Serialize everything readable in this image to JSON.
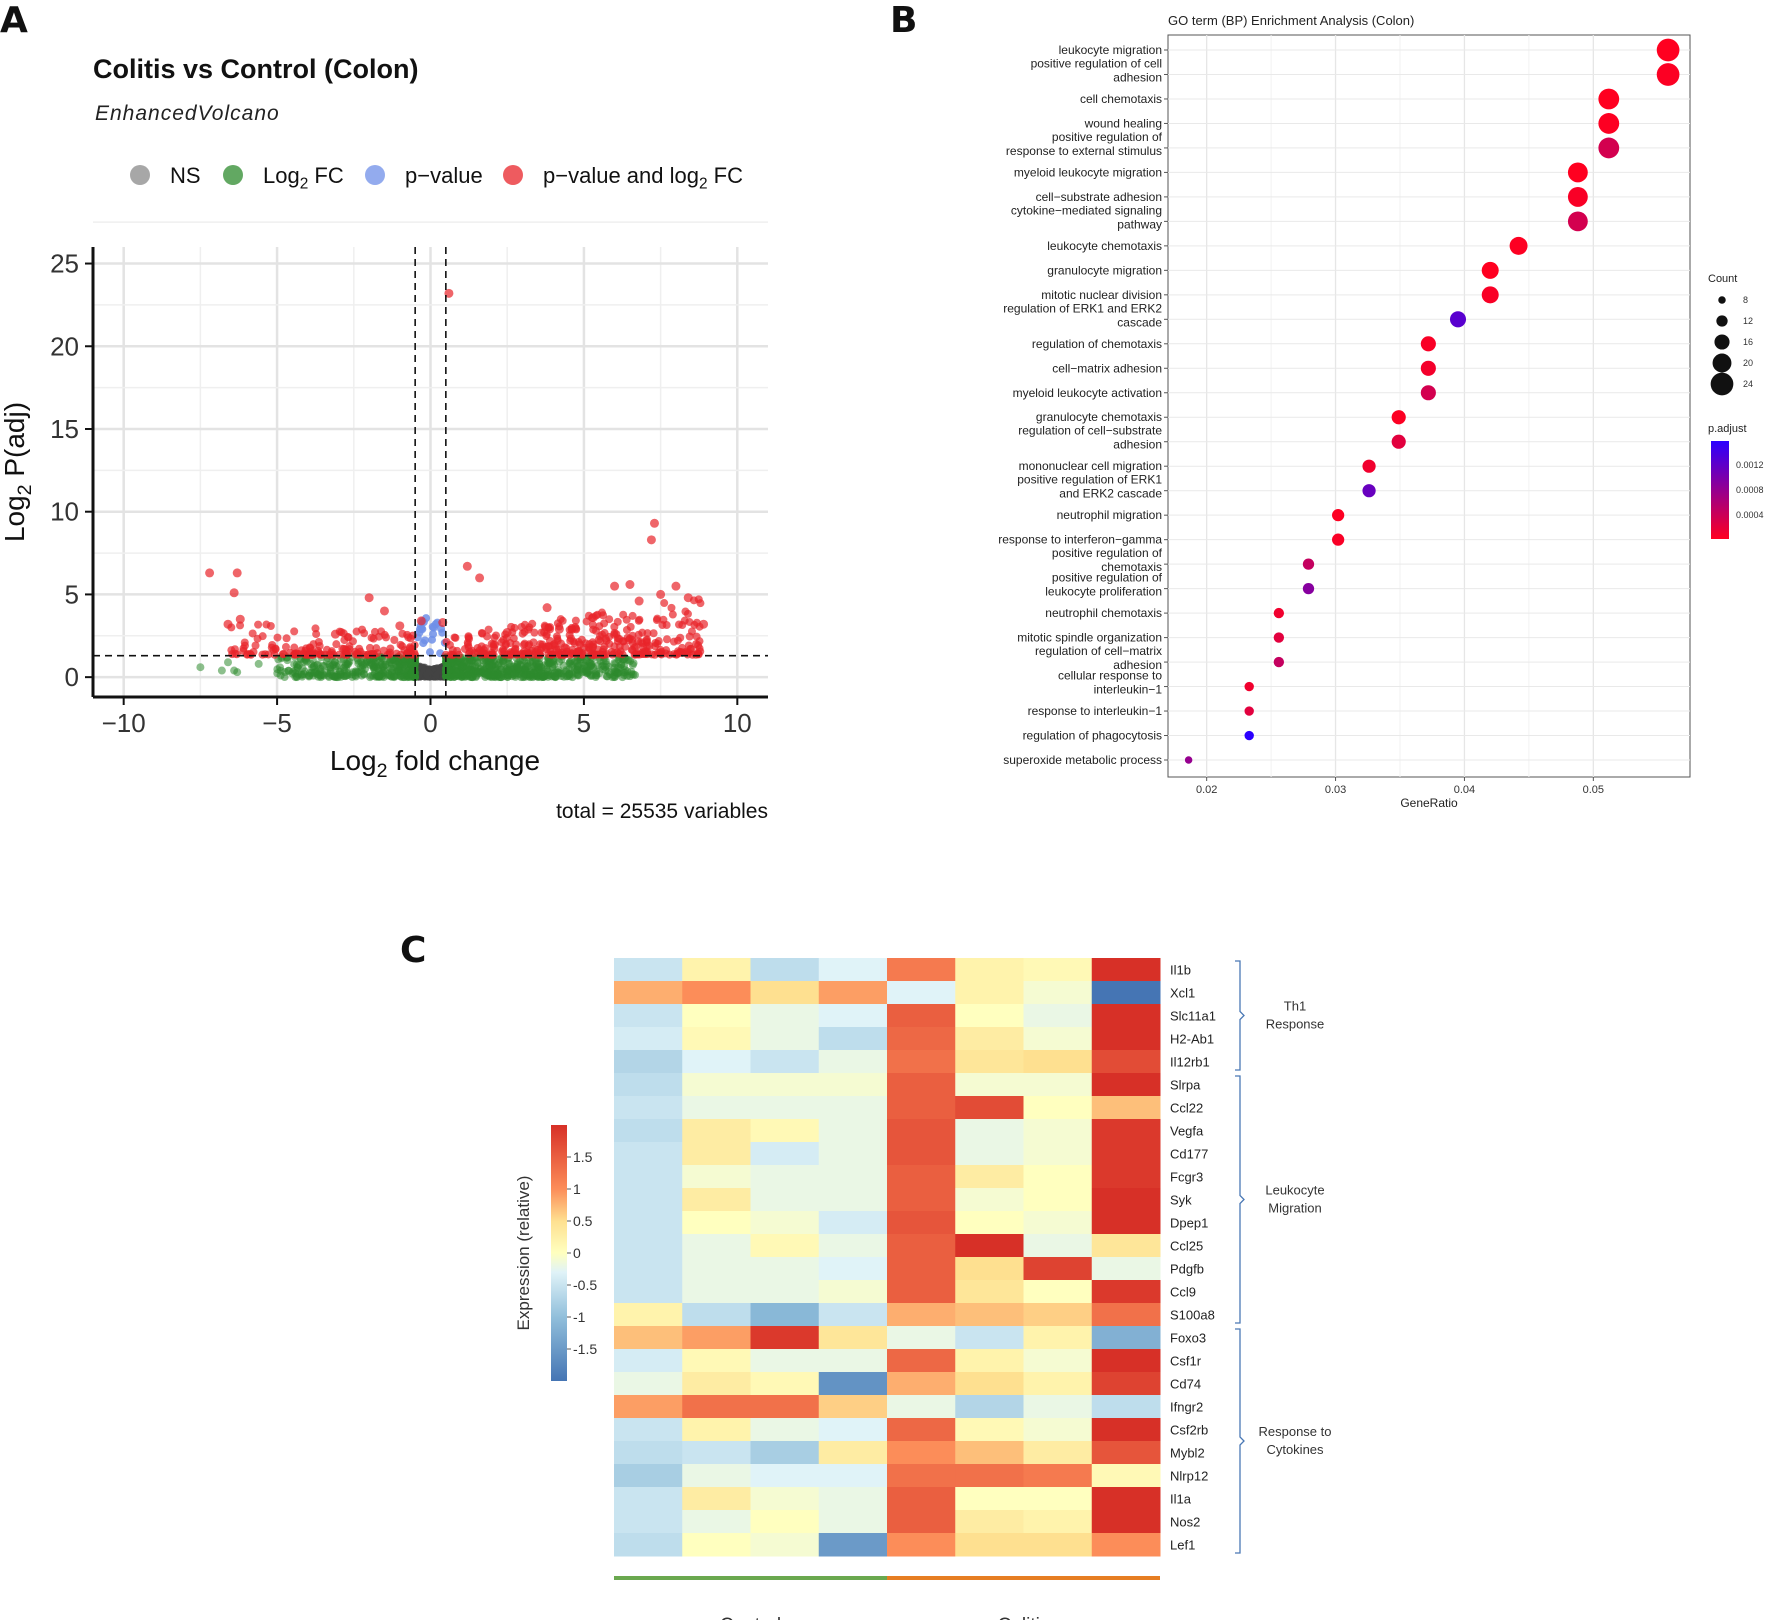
{
  "panel_labels": {
    "a": "A",
    "b": "B",
    "c": "C"
  },
  "chart_data": [
    {
      "type": "scatter",
      "title": "Colitis vs Control (Colon)",
      "subtitle": "EnhancedVolcano",
      "xlabel": "Log2 fold change",
      "ylabel": "Log2 P(adj)",
      "caption": "total = 25535 variables",
      "xlim": [
        -11,
        11
      ],
      "ylim": [
        -1.2,
        26
      ],
      "xticks": [
        -10,
        -5,
        0,
        5,
        10
      ],
      "xtick_labels": [
        "−10",
        "−5",
        "0",
        "5",
        "10"
      ],
      "yticks": [
        0,
        5,
        10,
        15,
        20,
        25
      ],
      "grid": true,
      "fc_cutoff": [
        -0.5,
        0.5
      ],
      "p_cutoff": 1.3,
      "legend_position": "top",
      "legend": [
        {
          "label": "NS",
          "color": "#8a8a8a"
        },
        {
          "label": "Log2 FC",
          "color": "#2e8b2e"
        },
        {
          "label": "p−value",
          "color": "#6f8fe8"
        },
        {
          "label": "p−value and log2 FC",
          "color": "#e8242a"
        }
      ],
      "highlight_points": [
        [
          0.6,
          23.2
        ],
        [
          7.3,
          9.3
        ],
        [
          7.2,
          8.3
        ],
        [
          1.2,
          6.7
        ],
        [
          1.6,
          6.0
        ],
        [
          -7.2,
          6.3
        ],
        [
          -6.3,
          6.3
        ],
        [
          -6.4,
          5.1
        ],
        [
          -6.6,
          3.2
        ],
        [
          -6.2,
          3.5
        ],
        [
          6.0,
          5.5
        ],
        [
          6.5,
          5.6
        ],
        [
          7.5,
          5.0
        ],
        [
          8.0,
          5.5
        ],
        [
          8.4,
          4.8
        ],
        [
          8.9,
          3.2
        ],
        [
          3.8,
          4.2
        ],
        [
          -0.3,
          3.4
        ],
        [
          0.4,
          3.3
        ],
        [
          -2.0,
          4.8
        ],
        [
          -1.5,
          4.0
        ],
        [
          -3.1,
          2.6
        ],
        [
          4.2,
          2.9
        ],
        [
          5.3,
          3.6
        ],
        [
          6.8,
          4.6
        ],
        [
          2.5,
          2.7
        ],
        [
          -1.0,
          3.1
        ]
      ]
    },
    {
      "type": "scatter",
      "title": "GO term (BP) Enrichment Analysis (Colon)",
      "xlabel": "GeneRatio",
      "xlim": [
        0.017,
        0.0575
      ],
      "xticks": [
        0.02,
        0.03,
        0.04,
        0.05
      ],
      "grid": true,
      "legend_position": "right",
      "size_legend": {
        "title": "Count",
        "values": [
          8,
          12,
          16,
          20,
          24
        ]
      },
      "color_legend": {
        "title": "p.adjust",
        "ticks": [
          "0.0012",
          "0.0008",
          "0.0004"
        ],
        "low_color": "#ff0020",
        "high_color": "#2b00ff"
      },
      "terms": [
        {
          "label": "leukocyte migration",
          "ratio": 0.0558,
          "count": 24,
          "padj": 1e-05
        },
        {
          "label": "positive regulation of cell\nadhesion",
          "ratio": 0.0558,
          "count": 24,
          "padj": 3e-05
        },
        {
          "label": "cell chemotaxis",
          "ratio": 0.0512,
          "count": 22,
          "padj": 1e-05
        },
        {
          "label": "wound healing",
          "ratio": 0.0512,
          "count": 22,
          "padj": 2e-05
        },
        {
          "label": "positive regulation of\nresponse to external stimulus",
          "ratio": 0.0512,
          "count": 22,
          "padj": 0.0003
        },
        {
          "label": "myeloid leukocyte migration",
          "ratio": 0.0488,
          "count": 21,
          "padj": 1e-05
        },
        {
          "label": "cell−substrate adhesion",
          "ratio": 0.0488,
          "count": 21,
          "padj": 5e-05
        },
        {
          "label": "cytokine−mediated signaling\npathway",
          "ratio": 0.0488,
          "count": 21,
          "padj": 0.0003
        },
        {
          "label": "leukocyte chemotaxis",
          "ratio": 0.0442,
          "count": 19,
          "padj": 2e-05
        },
        {
          "label": "granulocyte migration",
          "ratio": 0.042,
          "count": 18,
          "padj": 1e-05
        },
        {
          "label": "mitotic nuclear division",
          "ratio": 0.042,
          "count": 18,
          "padj": 5e-05
        },
        {
          "label": "regulation of ERK1 and ERK2\ncascade",
          "ratio": 0.0395,
          "count": 17,
          "padj": 0.0011
        },
        {
          "label": "regulation of chemotaxis",
          "ratio": 0.0372,
          "count": 16,
          "padj": 5e-05
        },
        {
          "label": "cell−matrix adhesion",
          "ratio": 0.0372,
          "count": 16,
          "padj": 8e-05
        },
        {
          "label": "myeloid leukocyte activation",
          "ratio": 0.0372,
          "count": 16,
          "padj": 0.0003
        },
        {
          "label": "granulocyte chemotaxis",
          "ratio": 0.0349,
          "count": 15,
          "padj": 3e-05
        },
        {
          "label": "regulation of cell−substrate\nadhesion",
          "ratio": 0.0349,
          "count": 15,
          "padj": 0.0002
        },
        {
          "label": "mononuclear cell migration",
          "ratio": 0.0326,
          "count": 14,
          "padj": 0.0001
        },
        {
          "label": "positive regulation of ERK1\nand ERK2 cascade",
          "ratio": 0.0326,
          "count": 14,
          "padj": 0.001
        },
        {
          "label": "neutrophil migration",
          "ratio": 0.0302,
          "count": 13,
          "padj": 2e-05
        },
        {
          "label": "response to interferon−gamma",
          "ratio": 0.0302,
          "count": 13,
          "padj": 5e-05
        },
        {
          "label": "positive regulation of\nchemotaxis",
          "ratio": 0.0279,
          "count": 12,
          "padj": 0.0004
        },
        {
          "label": "positive regulation of\nleukocyte proliferation",
          "ratio": 0.0279,
          "count": 12,
          "padj": 0.0008
        },
        {
          "label": "neutrophil chemotaxis",
          "ratio": 0.0256,
          "count": 11,
          "padj": 0.0001
        },
        {
          "label": "mitotic spindle organization",
          "ratio": 0.0256,
          "count": 11,
          "padj": 0.0002
        },
        {
          "label": "regulation of cell−matrix\nadhesion",
          "ratio": 0.0256,
          "count": 11,
          "padj": 0.0004
        },
        {
          "label": "cellular response to\ninterleukin−1",
          "ratio": 0.0233,
          "count": 10,
          "padj": 0.0001
        },
        {
          "label": "response to interleukin−1",
          "ratio": 0.0233,
          "count": 10,
          "padj": 0.0002
        },
        {
          "label": "regulation of phagocytosis",
          "ratio": 0.0233,
          "count": 10,
          "padj": 0.0014
        },
        {
          "label": "superoxide metabolic process",
          "ratio": 0.0186,
          "count": 8,
          "padj": 0.0007
        }
      ]
    },
    {
      "type": "heatmap",
      "colorbar_label": "Expression (relative)",
      "colorbar_ticks": [
        1.5,
        1,
        0.5,
        0,
        -0.5,
        -1,
        -1.5
      ],
      "color_range": [
        -2,
        2
      ],
      "group_labels": [
        "Control",
        "Colitis"
      ],
      "group_colors": [
        "#6aa84f",
        "#e67e22"
      ],
      "group_sizes": [
        4,
        4
      ],
      "row_groups": [
        {
          "name": "Th1\nResponse",
          "from": 0,
          "to": 4
        },
        {
          "name": "Leukocyte\nMigration",
          "from": 5,
          "to": 15
        },
        {
          "name": "Response to\nCytokines",
          "from": 16,
          "to": 25
        }
      ],
      "rows": [
        {
          "gene": "Il1b",
          "values": [
            -0.5,
            0.2,
            -0.6,
            -0.3,
            1.2,
            0.2,
            0.1,
            2.0
          ]
        },
        {
          "gene": "Xcl1",
          "values": [
            0.8,
            1.0,
            0.5,
            0.9,
            -0.3,
            0.2,
            -0.1,
            -2.0
          ]
        },
        {
          "gene": "Slc11a1",
          "values": [
            -0.5,
            0.0,
            -0.2,
            -0.3,
            1.5,
            0.0,
            -0.2,
            2.0
          ]
        },
        {
          "gene": "H2-Ab1",
          "values": [
            -0.4,
            0.1,
            -0.2,
            -0.6,
            1.4,
            0.3,
            -0.1,
            2.0
          ]
        },
        {
          "gene": "Il12rb1",
          "values": [
            -0.7,
            -0.3,
            -0.5,
            -0.2,
            1.3,
            0.4,
            0.5,
            1.7
          ]
        },
        {
          "gene": "Slrpa",
          "values": [
            -0.6,
            -0.1,
            -0.1,
            -0.1,
            1.5,
            -0.1,
            -0.1,
            2.0
          ]
        },
        {
          "gene": "Ccl22",
          "values": [
            -0.5,
            -0.2,
            -0.2,
            -0.2,
            1.5,
            1.7,
            0.0,
            0.7
          ]
        },
        {
          "gene": "Vegfa",
          "values": [
            -0.6,
            0.3,
            0.1,
            -0.2,
            1.6,
            -0.2,
            -0.1,
            1.9
          ]
        },
        {
          "gene": "Cd177",
          "values": [
            -0.5,
            0.3,
            -0.4,
            -0.2,
            1.6,
            -0.2,
            -0.1,
            1.9
          ]
        },
        {
          "gene": "Fcgr3",
          "values": [
            -0.5,
            -0.1,
            -0.2,
            -0.2,
            1.5,
            0.3,
            0.0,
            1.9
          ]
        },
        {
          "gene": "Syk",
          "values": [
            -0.5,
            0.3,
            -0.2,
            -0.2,
            1.5,
            -0.1,
            0.0,
            2.0
          ]
        },
        {
          "gene": "Dpep1",
          "values": [
            -0.5,
            0.0,
            -0.1,
            -0.4,
            1.6,
            0.0,
            -0.1,
            2.0
          ]
        },
        {
          "gene": "Ccl25",
          "values": [
            -0.5,
            -0.2,
            0.1,
            -0.2,
            1.5,
            2.0,
            -0.2,
            0.4
          ]
        },
        {
          "gene": "Pdgfb",
          "values": [
            -0.5,
            -0.2,
            -0.2,
            -0.3,
            1.5,
            0.5,
            1.8,
            -0.2
          ]
        },
        {
          "gene": "Ccl9",
          "values": [
            -0.5,
            -0.2,
            -0.2,
            -0.1,
            1.5,
            0.4,
            0.0,
            1.9
          ]
        },
        {
          "gene": "S100a8",
          "values": [
            0.2,
            -0.6,
            -1.1,
            -0.5,
            0.8,
            0.7,
            0.6,
            1.3
          ]
        },
        {
          "gene": "Foxo3",
          "values": [
            0.7,
            0.9,
            1.9,
            0.4,
            -0.2,
            -0.5,
            0.2,
            -1.2
          ]
        },
        {
          "gene": "Csf1r",
          "values": [
            -0.4,
            0.1,
            -0.2,
            -0.2,
            1.4,
            0.2,
            -0.1,
            2.0
          ]
        },
        {
          "gene": "Cd74",
          "values": [
            -0.2,
            0.3,
            0.1,
            -1.6,
            0.8,
            0.5,
            0.2,
            1.8
          ]
        },
        {
          "gene": "Ifngr2",
          "values": [
            0.9,
            1.3,
            1.3,
            0.6,
            -0.2,
            -0.7,
            -0.2,
            -0.6
          ]
        },
        {
          "gene": "Csf2rb",
          "values": [
            -0.5,
            0.2,
            -0.2,
            -0.3,
            1.4,
            0.1,
            -0.1,
            2.0
          ]
        },
        {
          "gene": "Mybl2",
          "values": [
            -0.6,
            -0.5,
            -0.8,
            0.3,
            1.0,
            0.7,
            0.3,
            1.6
          ]
        },
        {
          "gene": "Nlrp12",
          "values": [
            -0.8,
            -0.2,
            -0.3,
            -0.3,
            1.3,
            1.3,
            1.2,
            0.1
          ]
        },
        {
          "gene": "Il1a",
          "values": [
            -0.5,
            0.3,
            -0.1,
            -0.2,
            1.5,
            0.0,
            0.0,
            2.0
          ]
        },
        {
          "gene": "Nos2",
          "values": [
            -0.5,
            -0.2,
            0.0,
            -0.2,
            1.5,
            0.3,
            0.2,
            2.0
          ]
        },
        {
          "gene": "Lef1",
          "values": [
            -0.6,
            0.0,
            -0.1,
            -1.5,
            1.0,
            0.5,
            0.5,
            1.0
          ]
        }
      ]
    }
  ]
}
